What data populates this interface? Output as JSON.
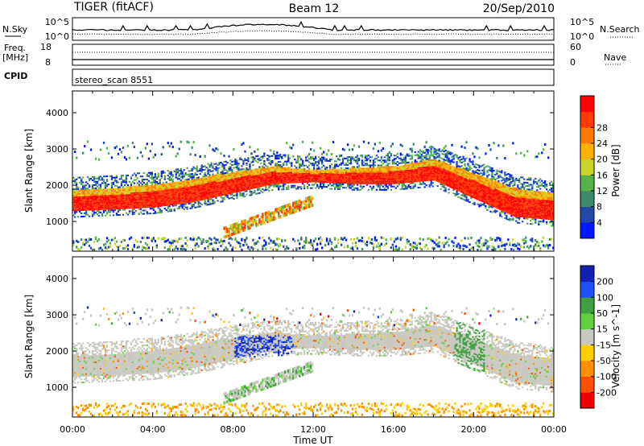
{
  "header": {
    "radar": "TIGER (fitACF)",
    "beam": "Beam 12",
    "date": "20/Sep/2010"
  },
  "strip1": {
    "left_label": "N.Sky",
    "left_top": "10^5",
    "left_bottom": "10^0",
    "right_top": "10^5",
    "right_bottom": "10^0",
    "right_label": "N.Search"
  },
  "strip2": {
    "left_label_line1": "Freq.",
    "left_label_line2": "[MHz]",
    "left_top": "18",
    "left_bottom": "8",
    "right_top": "60",
    "right_bottom": "0",
    "right_label": "Nave"
  },
  "strip3": {
    "label": "CPID",
    "value": "stereo_scan 8551"
  },
  "chart_data": [
    {
      "type": "heatmap",
      "ylabel": "Slant Range [km]",
      "yticks": [
        1000,
        2000,
        3000,
        4000
      ],
      "ylim": [
        180,
        4600
      ],
      "xlim_hours": [
        0,
        24
      ],
      "xticks": [
        "00:00",
        "04:00",
        "08:00",
        "12:00",
        "16:00",
        "20:00",
        "00:00"
      ],
      "colorbar": {
        "label": "Power [dB]",
        "ticks": [
          "4",
          "8",
          "12",
          "16",
          "20",
          "24",
          "28"
        ],
        "colors": [
          "#0018ff",
          "#1f4aa8",
          "#3f8a6a",
          "#56b24a",
          "#c8d42a",
          "#ffb000",
          "#ff7a00",
          "#ff3a00",
          "#ff0000"
        ]
      },
      "main_band_km": [
        [
          0,
          1250,
          1850
        ],
        [
          2,
          1300,
          1900
        ],
        [
          4,
          1350,
          2000
        ],
        [
          6,
          1500,
          2150
        ],
        [
          8,
          1750,
          2350
        ],
        [
          10,
          2000,
          2500
        ],
        [
          12,
          2050,
          2400
        ],
        [
          14,
          2000,
          2450
        ],
        [
          16,
          2000,
          2500
        ],
        [
          18,
          2100,
          2700
        ],
        [
          20,
          1600,
          2300
        ],
        [
          22,
          1100,
          1900
        ],
        [
          24,
          1000,
          1750
        ]
      ]
    },
    {
      "type": "heatmap",
      "ylabel": "Slant Range [km]",
      "yticks": [
        1000,
        2000,
        3000,
        4000
      ],
      "ylim": [
        180,
        4600
      ],
      "xlim_hours": [
        0,
        24
      ],
      "xticks": [
        "00:00",
        "04:00",
        "08:00",
        "12:00",
        "16:00",
        "20:00",
        "00:00"
      ],
      "xlabel": "Time UT",
      "colorbar": {
        "label": "Velocity [m s^-1]",
        "ticks": [
          "200",
          "100",
          "50",
          "15",
          "-15",
          "-50",
          "-100",
          "-200"
        ],
        "colors": [
          "#1020b0",
          "#2050ff",
          "#40a040",
          "#60d040",
          "#c8c8c0",
          "#ffcc00",
          "#ff9000",
          "#ff5000",
          "#ee0000"
        ]
      }
    }
  ]
}
